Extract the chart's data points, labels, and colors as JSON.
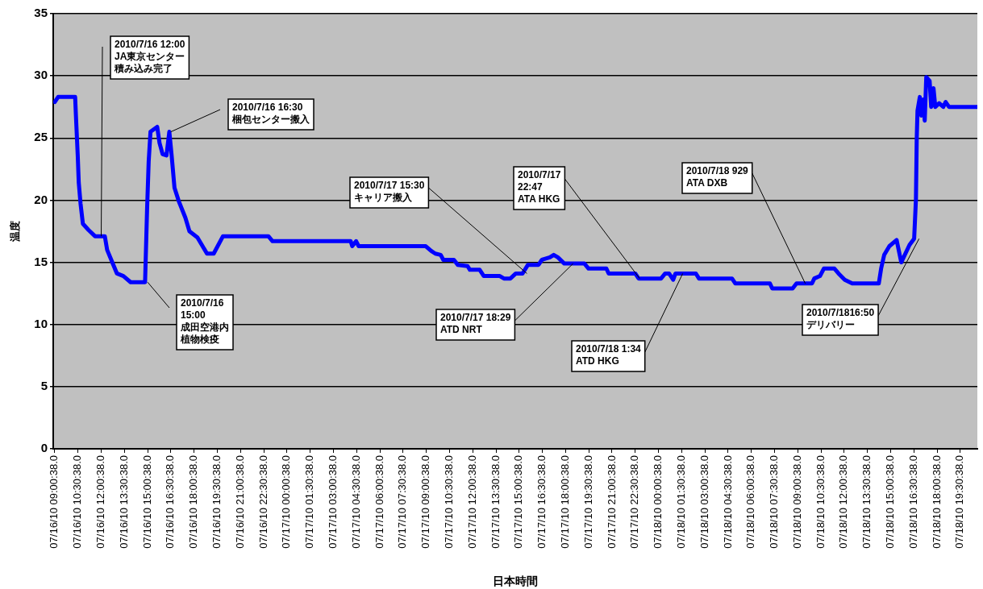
{
  "chart_data": {
    "type": "line",
    "xlabel": "日本時間",
    "ylabel": "温度",
    "x": [
      "2010-07-16T09:00",
      "2010-07-16T09:13",
      "2010-07-16T10:19",
      "2010-07-16T10:22",
      "2010-07-16T10:29",
      "2010-07-16T10:33",
      "2010-07-16T10:40",
      "2010-07-16T10:49",
      "2010-07-16T11:11",
      "2010-07-16T11:36",
      "2010-07-16T12:14",
      "2010-07-16T12:23",
      "2010-07-16T12:39",
      "2010-07-16T13:01",
      "2010-07-16T13:26",
      "2010-07-16T13:54",
      "2010-07-16T14:50",
      "2010-07-16T14:58",
      "2010-07-16T15:04",
      "2010-07-16T15:11",
      "2010-07-16T15:37",
      "2010-07-16T15:46",
      "2010-07-16T15:58",
      "2010-07-16T16:13",
      "2010-07-16T16:24",
      "2010-07-16T16:33",
      "2010-07-16T16:44",
      "2010-07-16T17:01",
      "2010-07-16T17:26",
      "2010-07-16T17:42",
      "2010-07-16T18:13",
      "2010-07-16T18:50",
      "2010-07-16T19:16",
      "2010-07-16T19:52",
      "2010-07-16T22:48",
      "2010-07-16T23:04",
      "2010-07-17T04:07",
      "2010-07-17T04:13",
      "2010-07-17T04:28",
      "2010-07-17T04:38",
      "2010-07-17T08:58",
      "2010-07-17T09:20",
      "2010-07-17T09:35",
      "2010-07-17T09:56",
      "2010-07-17T10:06",
      "2010-07-17T10:47",
      "2010-07-17T11:02",
      "2010-07-17T11:40",
      "2010-07-17T11:49",
      "2010-07-17T12:27",
      "2010-07-17T12:43",
      "2010-07-17T13:45",
      "2010-07-17T14:01",
      "2010-07-17T14:26",
      "2010-07-17T14:47",
      "2010-07-17T15:13",
      "2010-07-17T15:34",
      "2010-07-17T16:15",
      "2010-07-17T16:28",
      "2010-07-17T16:59",
      "2010-07-17T17:14",
      "2010-07-17T17:30",
      "2010-07-17T17:55",
      "2010-07-17T19:13",
      "2010-07-17T19:29",
      "2010-07-17T20:38",
      "2010-07-17T20:47",
      "2010-07-17T22:30",
      "2010-07-17T22:43",
      "2010-07-18T00:10",
      "2010-07-18T00:26",
      "2010-07-18T00:41",
      "2010-07-18T00:57",
      "2010-07-18T01:06",
      "2010-07-18T02:25",
      "2010-07-18T02:37",
      "2010-07-18T04:45",
      "2010-07-18T04:58",
      "2010-07-18T07:12",
      "2010-07-18T07:21",
      "2010-07-18T08:40",
      "2010-07-18T08:55",
      "2010-07-18T09:55",
      "2010-07-18T10:04",
      "2010-07-18T10:26",
      "2010-07-18T10:41",
      "2010-07-18T11:22",
      "2010-07-18T11:38",
      "2010-07-18T12:02",
      "2010-07-18T12:31",
      "2010-07-18T14:14",
      "2010-07-18T14:23",
      "2010-07-18T14:35",
      "2010-07-18T14:55",
      "2010-07-18T15:23",
      "2010-07-18T15:41",
      "2010-07-18T16:13",
      "2010-07-18T16:31",
      "2010-07-18T16:38",
      "2010-07-18T16:41",
      "2010-07-18T16:44",
      "2010-07-18T16:53",
      "2010-07-18T16:59",
      "2010-07-18T17:06",
      "2010-07-18T17:12",
      "2010-07-18T17:18",
      "2010-07-18T17:31",
      "2010-07-18T17:37",
      "2010-07-18T17:46",
      "2010-07-18T17:53",
      "2010-07-18T18:08",
      "2010-07-18T18:24",
      "2010-07-18T18:33",
      "2010-07-18T18:46",
      "2010-07-18T20:35"
    ],
    "series": [
      {
        "color": "#0000ff",
        "values": [
          27.9,
          28.3,
          28.3,
          26.8,
          23.6,
          21.4,
          19.7,
          18.1,
          17.6,
          17.1,
          17.1,
          16.0,
          15.2,
          14.1,
          13.9,
          13.4,
          13.4,
          19.4,
          23.1,
          25.5,
          25.9,
          24.6,
          23.7,
          23.6,
          25.5,
          23.6,
          21.0,
          19.9,
          18.6,
          17.5,
          17.0,
          15.7,
          15.7,
          17.1,
          17.1,
          16.7,
          16.7,
          16.3,
          16.7,
          16.3,
          16.3,
          15.9,
          15.7,
          15.6,
          15.2,
          15.2,
          14.8,
          14.7,
          14.4,
          14.4,
          13.9,
          13.9,
          13.7,
          13.7,
          14.1,
          14.1,
          14.8,
          14.8,
          15.2,
          15.4,
          15.6,
          15.4,
          14.9,
          14.9,
          14.5,
          14.5,
          14.1,
          14.1,
          13.7,
          13.7,
          14.1,
          14.1,
          13.6,
          14.1,
          14.1,
          13.7,
          13.7,
          13.3,
          13.3,
          12.9,
          12.9,
          13.3,
          13.3,
          13.7,
          13.9,
          14.5,
          14.5,
          14.1,
          13.6,
          13.3,
          13.3,
          14.5,
          15.6,
          16.3,
          16.8,
          15.0,
          16.4,
          16.9,
          20.1,
          24.9,
          27.2,
          28.3,
          26.8,
          28.1,
          26.4,
          29.9,
          29.6,
          27.5,
          29.0,
          27.5,
          27.8,
          27.5,
          27.9,
          27.5,
          27.5
        ]
      }
    ],
    "xlim": [
      "2010-07-16T08:54",
      "2010-07-18T20:36"
    ],
    "ylim": [
      0,
      35
    ],
    "yticks": [
      0,
      5,
      10,
      15,
      20,
      25,
      30,
      35
    ],
    "xticks": [
      {
        "value": "2010-07-16T09:00",
        "label": "07/16/10 09:00:38.0"
      },
      {
        "value": "2010-07-16T10:30",
        "label": "07/16/10 10:30:38.0"
      },
      {
        "value": "2010-07-16T12:00",
        "label": "07/16/10 12:00:38.0"
      },
      {
        "value": "2010-07-16T13:30",
        "label": "07/16/10 13:30:38.0"
      },
      {
        "value": "2010-07-16T15:00",
        "label": "07/16/10 15:00:38.0"
      },
      {
        "value": "2010-07-16T16:30",
        "label": "07/16/10 16:30:38.0"
      },
      {
        "value": "2010-07-16T18:00",
        "label": "07/16/10 18:00:38.0"
      },
      {
        "value": "2010-07-16T19:30",
        "label": "07/16/10 19:30:38.0"
      },
      {
        "value": "2010-07-16T21:00",
        "label": "07/16/10 21:00:38.0"
      },
      {
        "value": "2010-07-16T22:30",
        "label": "07/16/10 22:30:38.0"
      },
      {
        "value": "2010-07-17T00:00",
        "label": "07/17/10 00:00:38.0"
      },
      {
        "value": "2010-07-17T01:30",
        "label": "07/17/10 01:30:38.0"
      },
      {
        "value": "2010-07-17T03:00",
        "label": "07/17/10 03:00:38.0"
      },
      {
        "value": "2010-07-17T04:30",
        "label": "07/17/10 04:30:38.0"
      },
      {
        "value": "2010-07-17T06:00",
        "label": "07/17/10 06:00:38.0"
      },
      {
        "value": "2010-07-17T07:30",
        "label": "07/17/10 07:30:38.0"
      },
      {
        "value": "2010-07-17T09:00",
        "label": "07/17/10 09:00:38.0"
      },
      {
        "value": "2010-07-17T10:30",
        "label": "07/17/10 10:30:38.0"
      },
      {
        "value": "2010-07-17T12:00",
        "label": "07/17/10 12:00:38.0"
      },
      {
        "value": "2010-07-17T13:30",
        "label": "07/17/10 13:30:38.0"
      },
      {
        "value": "2010-07-17T15:00",
        "label": "07/17/10 15:00:38.0"
      },
      {
        "value": "2010-07-17T16:30",
        "label": "07/17/10 16:30:38.0"
      },
      {
        "value": "2010-07-17T18:00",
        "label": "07/17/10 18:00:38.0"
      },
      {
        "value": "2010-07-17T19:30",
        "label": "07/17/10 19:30:38.0"
      },
      {
        "value": "2010-07-17T21:00",
        "label": "07/17/10 21:00:38.0"
      },
      {
        "value": "2010-07-17T22:30",
        "label": "07/17/10 22:30:38.0"
      },
      {
        "value": "2010-07-18T00:00",
        "label": "07/18/10 00:00:38.0"
      },
      {
        "value": "2010-07-18T01:30",
        "label": "07/18/10 01:30:38.0"
      },
      {
        "value": "2010-07-18T03:00",
        "label": "07/18/10 03:00:38.0"
      },
      {
        "value": "2010-07-18T04:30",
        "label": "07/18/10 04:30:38.0"
      },
      {
        "value": "2010-07-18T06:00",
        "label": "07/18/10 06:00:38.0"
      },
      {
        "value": "2010-07-18T07:30",
        "label": "07/18/10 07:30:38.0"
      },
      {
        "value": "2010-07-18T09:00",
        "label": "07/18/10 09:00:38.0"
      },
      {
        "value": "2010-07-18T10:30",
        "label": "07/18/10 10:30:38.0"
      },
      {
        "value": "2010-07-18T12:00",
        "label": "07/18/10 12:00:38.0"
      },
      {
        "value": "2010-07-18T13:30",
        "label": "07/18/10 13:30:38.0"
      },
      {
        "value": "2010-07-18T15:00",
        "label": "07/18/10 15:00:38.0"
      },
      {
        "value": "2010-07-18T16:30",
        "label": "07/18/10 16:30:38.0"
      },
      {
        "value": "2010-07-18T18:00",
        "label": "07/18/10 18:00:38.0"
      },
      {
        "value": "2010-07-18T19:30",
        "label": "07/18/10 19:30:38.0"
      }
    ],
    "grid": "y",
    "marker": "none",
    "line_style": "solid",
    "annotations": [
      {
        "text": "2010/7/16 12:00\nJA東京センター積み込み完了",
        "x": "2010-07-16T12:00",
        "y": 17.1
      },
      {
        "text": "2010/7/16 16:30\n梱包センター搬入",
        "x": "2010-07-16T16:30",
        "y": 25.5
      },
      {
        "text": "2010/7/16\n15:00\n成田空港内植物検疫",
        "x": "2010-07-16T15:00",
        "y": 13.4
      },
      {
        "text": "2010/7/17 15:30\nキャリア搬入",
        "x": "2010-07-17T15:30",
        "y": 14.1
      },
      {
        "text": "2010/7/17 18:29\nATD NRT",
        "x": "2010-07-17T18:29",
        "y": 14.9
      },
      {
        "text": "2010/7/17\n22:47\nATA HKG",
        "x": "2010-07-17T22:47",
        "y": 13.7
      },
      {
        "text": "2010/7/18 1:34\nATD HKG",
        "x": "2010-07-18T01:34",
        "y": 14.1
      },
      {
        "text": "2010/7/18 929\nATA DXB",
        "x": "2010-07-18T09:29",
        "y": 13.3
      },
      {
        "text": "2010/7/1816:50\nデリバリー",
        "x": "2010-07-18T16:50",
        "y": 16.9
      }
    ]
  }
}
